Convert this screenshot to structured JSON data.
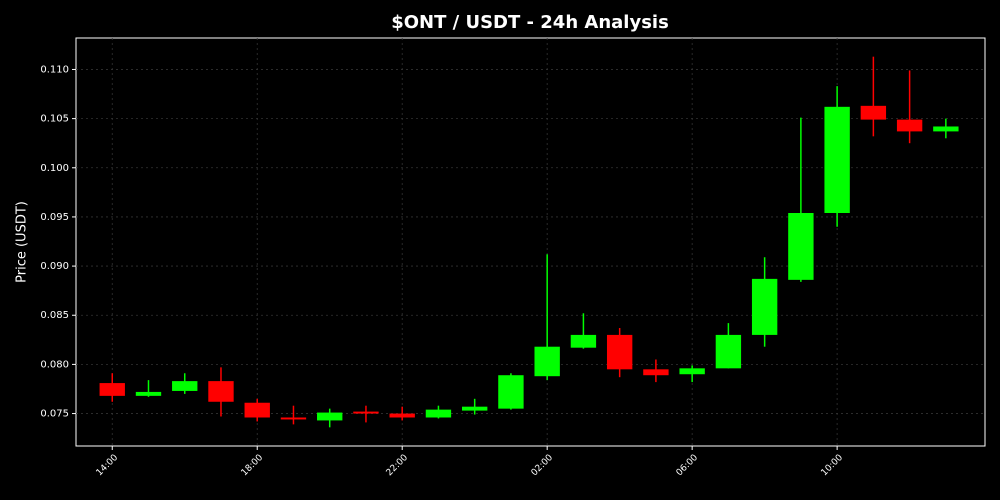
{
  "chart_data": {
    "type": "candlestick",
    "title": "$ONT / USDT - 24h Analysis",
    "y_label": "Price (USDT)",
    "categories": [
      "14:00",
      null,
      null,
      null,
      "18:00",
      null,
      null,
      null,
      "22:00",
      null,
      null,
      null,
      "02:00",
      null,
      null,
      null,
      "06:00",
      null,
      null,
      null,
      "10:00",
      null,
      null,
      null
    ],
    "open": [
      0.0781,
      0.0768,
      0.0773,
      0.0783,
      0.0761,
      0.0746,
      0.0743,
      0.0752,
      0.075,
      0.0746,
      0.0753,
      0.0755,
      0.0788,
      0.0817,
      0.083,
      0.0795,
      0.079,
      0.0796,
      0.083,
      0.0886,
      0.0954,
      0.1063,
      0.1049,
      0.1037
    ],
    "high": [
      0.0791,
      0.0784,
      0.0791,
      0.0797,
      0.0765,
      0.0758,
      0.0755,
      0.0758,
      0.0757,
      0.0758,
      0.0765,
      0.0791,
      0.0912,
      0.0852,
      0.0837,
      0.0805,
      0.0799,
      0.0842,
      0.0909,
      0.1051,
      0.1083,
      0.1113,
      0.1099,
      0.105
    ],
    "low": [
      0.0762,
      0.0767,
      0.077,
      0.0747,
      0.0742,
      0.0739,
      0.0736,
      0.0741,
      0.0743,
      0.0745,
      0.0749,
      0.0754,
      0.0784,
      0.0816,
      0.0787,
      0.0782,
      0.0782,
      0.0796,
      0.0818,
      0.0884,
      0.094,
      0.1032,
      0.1025,
      0.103
    ],
    "close": [
      0.0768,
      0.0772,
      0.0783,
      0.0762,
      0.0746,
      0.0744,
      0.0751,
      0.075,
      0.0746,
      0.0754,
      0.0757,
      0.0789,
      0.0818,
      0.083,
      0.0795,
      0.0789,
      0.0796,
      0.083,
      0.0887,
      0.0954,
      0.1062,
      0.1049,
      0.1037,
      0.1042
    ],
    "up_color": "#00ff00",
    "down_color": "#ff0000",
    "ylim": [
      0.0717,
      0.1132
    ],
    "yticks": [
      {
        "value": 0.075,
        "label": "0.075"
      },
      {
        "value": 0.08,
        "label": "0.080"
      },
      {
        "value": 0.085,
        "label": "0.085"
      },
      {
        "value": 0.09,
        "label": "0.090"
      },
      {
        "value": 0.095,
        "label": "0.095"
      },
      {
        "value": 0.1,
        "label": "0.100"
      },
      {
        "value": 0.105,
        "label": "0.105"
      },
      {
        "value": 0.11,
        "label": "0.110"
      }
    ],
    "grid": true
  }
}
